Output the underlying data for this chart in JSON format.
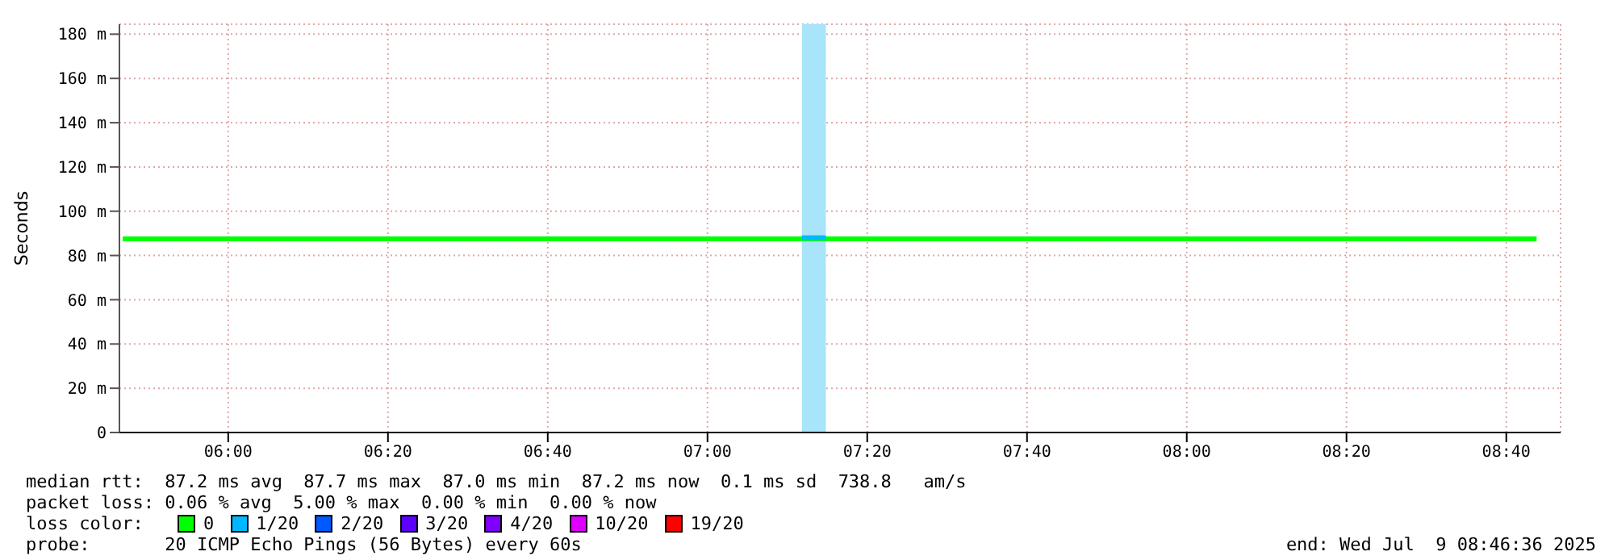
{
  "chart_data": {
    "type": "line",
    "ylabel": "Seconds",
    "legend_title": "loss color:",
    "xlim": [
      5.773,
      8.78
    ],
    "ylim": [
      0,
      184.5
    ],
    "xticks": [
      {
        "value": 6,
        "label": "06:00"
      },
      {
        "value": 6.3333,
        "label": "06:20"
      },
      {
        "value": 6.6667,
        "label": "06:40"
      },
      {
        "value": 7,
        "label": "07:00"
      },
      {
        "value": 7.3333,
        "label": "07:20"
      },
      {
        "value": 7.6667,
        "label": "07:40"
      },
      {
        "value": 8,
        "label": "08:00"
      },
      {
        "value": 8.3333,
        "label": "08:20"
      },
      {
        "value": 8.6667,
        "label": "08:40"
      }
    ],
    "yticks": [
      0,
      {
        "value": 20,
        "label": "20 m"
      },
      {
        "value": 40,
        "label": "40 m"
      },
      {
        "value": 60,
        "label": "60 m"
      },
      {
        "value": 80,
        "label": "80 m"
      },
      {
        "value": 100,
        "label": "100 m"
      },
      {
        "value": 120,
        "label": "120 m"
      },
      {
        "value": 140,
        "label": "140 m"
      },
      {
        "value": 160,
        "label": "160 m"
      },
      {
        "value": 180,
        "label": "180 m"
      }
    ],
    "grid": true,
    "legend": "bottom",
    "marker": "none",
    "line_style": "solid",
    "series": [
      {
        "name": "0",
        "color": "#00ff00",
        "x": [
          5.78,
          6.0,
          6.17,
          6.33,
          6.5,
          6.67,
          6.83,
          7.0,
          7.1,
          7.197,
          7.247,
          7.33,
          7.5,
          7.67,
          7.83,
          8.0,
          8.17,
          8.33,
          8.5,
          8.67,
          8.73
        ],
        "values": [
          87.5,
          87.5,
          87.5,
          87.5,
          87.5,
          87.5,
          87.5,
          87.5,
          87.5,
          87.5,
          87.5,
          87.5,
          87.5,
          87.5,
          87.5,
          87.5,
          87.5,
          87.5,
          87.5,
          87.5,
          87.5
        ]
      },
      {
        "name": "1/20",
        "color": "#00b8ff",
        "x": [
          7.197,
          7.247
        ],
        "values": [
          88,
          88
        ]
      },
      {
        "name": "2/20",
        "color": "#0059ff"
      },
      {
        "name": "3/20",
        "color": "#5e00ff"
      },
      {
        "name": "4/20",
        "color": "#7e00ff"
      },
      {
        "name": "10/20",
        "color": "#dd00ff"
      },
      {
        "name": "19/20",
        "color": "#ff0000"
      }
    ],
    "bands": [
      {
        "axis": "x",
        "from": 7.197,
        "to": 7.247,
        "color": "#a8e4fa"
      }
    ],
    "annotations": [
      "median rtt:  87.2 ms avg  87.7 ms max  87.0 ms min  87.2 ms now  0.1 ms sd  738.8   am/s",
      "packet loss: 0.06 % avg  5.00 % max  0.00 % min  0.00 % now",
      "probe:       20 ICMP Echo Pings (56 Bytes) every 60s",
      "end: Wed Jul  9 08:46:36 2025"
    ]
  }
}
